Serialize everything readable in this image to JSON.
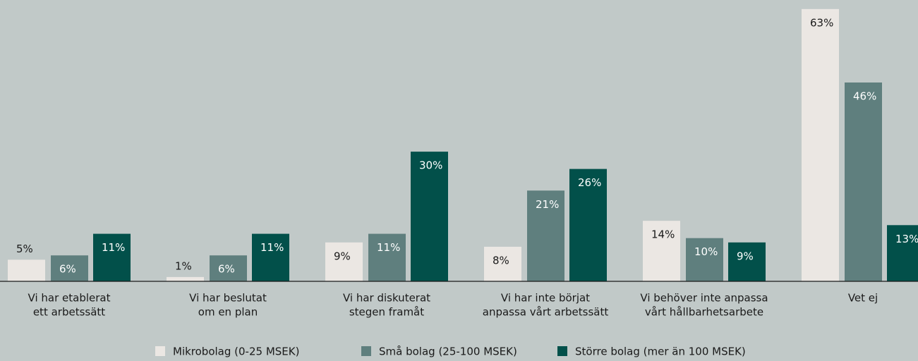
{
  "chart_data": {
    "type": "bar",
    "categories": [
      [
        "Vi har etablerat",
        "ett arbetssätt"
      ],
      [
        "Vi har beslutat",
        "om en plan"
      ],
      [
        "Vi har diskuterat",
        "stegen framåt"
      ],
      [
        "Vi har inte börjat",
        "anpassa vårt arbetssätt"
      ],
      [
        "Vi behöver inte anpassa",
        "vårt hållbarhetsarbete"
      ],
      [
        "Vet ej"
      ]
    ],
    "series": [
      {
        "name": "Mikrobolag (0-25 MSEK)",
        "color": "#ebe7e3",
        "values": [
          5,
          1,
          9,
          8,
          14,
          63
        ],
        "value_labels": [
          "5%",
          "1%",
          "9%",
          "8%",
          "14%",
          "63%"
        ]
      },
      {
        "name": "Små bolag (25-100 MSEK)",
        "color": "#5f7f7e",
        "values": [
          6,
          6,
          11,
          21,
          10,
          46
        ],
        "value_labels": [
          "6%",
          "6%",
          "11%",
          "21%",
          "10%",
          "46%"
        ]
      },
      {
        "name": "Större bolag (mer än 100 MSEK)",
        "color": "#02504a",
        "values": [
          11,
          11,
          30,
          26,
          9,
          13
        ],
        "value_labels": [
          "11%",
          "11%",
          "30%",
          "26%",
          "9%",
          "13%"
        ]
      }
    ]
  }
}
